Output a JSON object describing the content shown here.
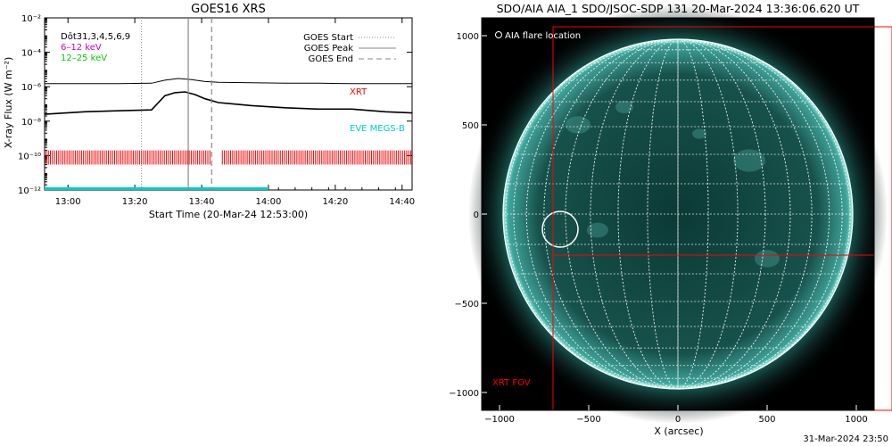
{
  "chart_data": [
    {
      "type": "line",
      "title": "GOES16 XRS",
      "xlabel": "Start Time (20-Mar-24 12:53:00)",
      "ylabel": "X-ray Flux (W m⁻²)",
      "y_scale": "log",
      "ylim": [
        1e-12,
        0.01
      ],
      "xlim": [
        "12:53",
        "14:43"
      ],
      "x_ticks": [
        "13:00",
        "13:20",
        "13:40",
        "14:00",
        "14:20",
        "14:40"
      ],
      "y_ticks": [
        "10⁻²",
        "10⁻⁴",
        "10⁻⁶",
        "10⁻⁸",
        "10⁻¹⁰",
        "10⁻¹²"
      ],
      "legend_left": [
        {
          "text": "Dōt31,3,4,5,6,9",
          "color": "#000000"
        },
        {
          "text": "6–12 keV",
          "color": "#cc00cc"
        },
        {
          "text": "12–25 keV",
          "color": "#00cc00"
        }
      ],
      "legend_right": [
        {
          "text": "GOES Start",
          "style": "dotted"
        },
        {
          "text": "GOES Peak",
          "style": "solid"
        },
        {
          "text": "GOES End",
          "style": "dashed"
        }
      ],
      "markers": {
        "goes_start": "13:22",
        "goes_peak": "13:36",
        "goes_end": "13:43"
      },
      "annotations": {
        "xrt": "XRT",
        "eve": "EVE MEGS-B"
      },
      "colors": {
        "xrt": "#ff0000",
        "eve": "#00cccc",
        "line": "#000000"
      },
      "series": [
        {
          "band": "long",
          "x": [
            "12:53",
            "13:05",
            "13:15",
            "13:25",
            "13:29",
            "13:33",
            "13:37",
            "13:41",
            "13:45",
            "13:55",
            "14:05",
            "14:15",
            "14:25",
            "14:35",
            "14:43"
          ],
          "values": [
            1.5e-06,
            1.5e-06,
            1.5e-06,
            1.6e-06,
            2.4e-06,
            3e-06,
            2.6e-06,
            2e-06,
            1.8e-06,
            1.7e-06,
            1.6e-06,
            1.6e-06,
            1.5e-06,
            1.5e-06,
            1.5e-06
          ]
        },
        {
          "band": "short",
          "x": [
            "12:53",
            "13:05",
            "13:15",
            "13:25",
            "13:29",
            "13:32",
            "13:35",
            "13:38",
            "13:41",
            "13:45",
            "13:55",
            "14:05",
            "14:15",
            "14:25",
            "14:35",
            "14:43"
          ],
          "values": [
            2.5e-08,
            3.5e-08,
            4e-08,
            4.5e-08,
            3e-07,
            4.5e-07,
            5e-07,
            3.5e-07,
            2e-07,
            1.2e-07,
            8e-08,
            6e-08,
            5e-08,
            5e-08,
            3.5e-08,
            3e-08
          ]
        }
      ]
    },
    {
      "type": "heatmap",
      "title": "SDO/AIA AIA_1 SDO/JSOC-SDP 131 20-Mar-2024 13:36:06.620 UT",
      "xlabel": "X (arcsec)",
      "ylabel": "",
      "xlim": [
        -1100,
        1100
      ],
      "ylim": [
        -1100,
        1100
      ],
      "x_ticks": [
        "−1000",
        "−500",
        "0",
        "500",
        "1000"
      ],
      "y_ticks": [
        "1000",
        "500",
        "0",
        "−500",
        "−1000"
      ],
      "legend_text": "AIA flare location",
      "fov_label": "XRT FOV",
      "fov_color": "#ff0000",
      "flare_location": {
        "x": -660,
        "y": -85,
        "radius": 100
      },
      "solar_radius": 980,
      "grid": true
    }
  ],
  "footer": {
    "timestamp": "31-Mar-2024 23:50"
  }
}
